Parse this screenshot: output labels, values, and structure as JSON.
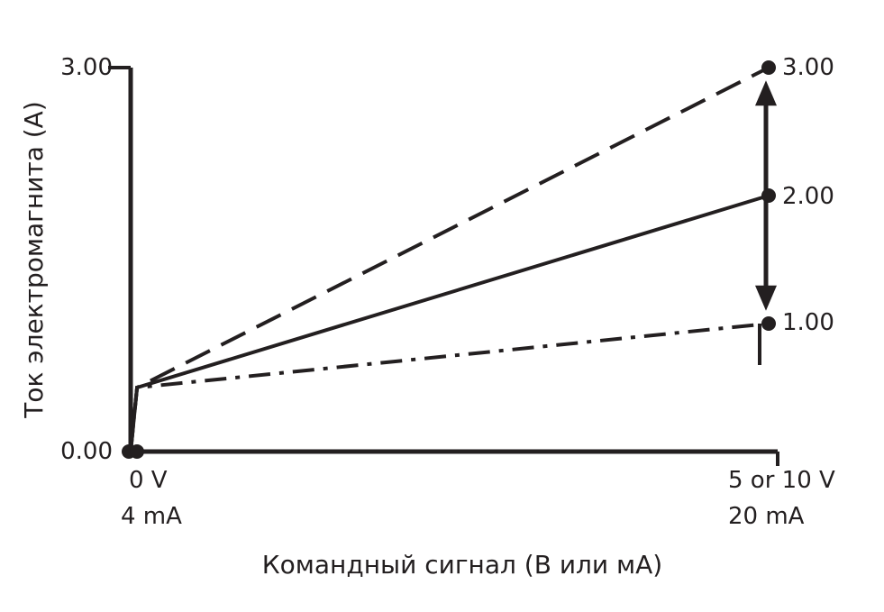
{
  "chart_data": {
    "type": "line",
    "title": "",
    "xlabel": "Командный сигнал (В или мА)",
    "ylabel": "Ток электромагнита (A)",
    "xlim": [
      0,
      1
    ],
    "ylim": [
      0,
      3
    ],
    "grid": false,
    "legend": "none",
    "x_ticks": [
      {
        "x": 0,
        "line1": "0 V",
        "line2": "4 mA"
      },
      {
        "x": 1,
        "line1": "5 or 10 V",
        "line2": "20 mA"
      }
    ],
    "y_ticks": [
      {
        "y": 0,
        "label": "0.00"
      },
      {
        "y": 3,
        "label": "3.00"
      }
    ],
    "series": [
      {
        "style": "dashed",
        "x": [
          0,
          0.01,
          1
        ],
        "y": [
          0,
          0.5,
          3.0
        ]
      },
      {
        "style": "solid",
        "x": [
          0,
          0.01,
          1
        ],
        "y": [
          0,
          0.5,
          2.0
        ]
      },
      {
        "style": "dashdot",
        "x": [
          0,
          0.01,
          1
        ],
        "y": [
          0,
          0.5,
          1.0
        ]
      }
    ],
    "end_labels": [
      {
        "y": 3.0,
        "label": "3.00"
      },
      {
        "y": 2.0,
        "label": "2.00"
      },
      {
        "y": 1.0,
        "label": "1.00"
      }
    ],
    "annotations": [
      {
        "type": "double-arrow",
        "x": 1,
        "from": 1.1,
        "to": 2.9
      }
    ]
  },
  "colors": {
    "ink": "#231f20",
    "background": "#ffffff"
  }
}
